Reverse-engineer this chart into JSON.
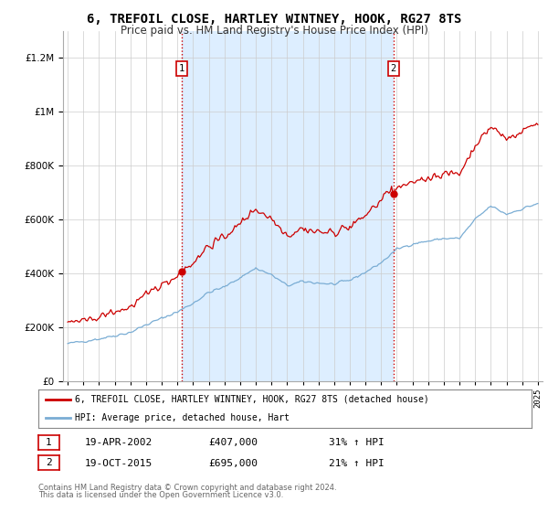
{
  "title": "6, TREFOIL CLOSE, HARTLEY WINTNEY, HOOK, RG27 8TS",
  "subtitle": "Price paid vs. HM Land Registry's House Price Index (HPI)",
  "title_fontsize": 10,
  "subtitle_fontsize": 8.5,
  "legend_line1": "6, TREFOIL CLOSE, HARTLEY WINTNEY, HOOK, RG27 8TS (detached house)",
  "legend_line2": "HPI: Average price, detached house, Hart",
  "sale1_date": "19-APR-2002",
  "sale1_price": "£407,000",
  "sale1_hpi": "31% ↑ HPI",
  "sale1_year": 2002.29,
  "sale1_value": 407000,
  "sale2_date": "19-OCT-2015",
  "sale2_price": "£695,000",
  "sale2_hpi": "21% ↑ HPI",
  "sale2_year": 2015.79,
  "sale2_value": 695000,
  "line_color_red": "#cc0000",
  "line_color_blue": "#7aadd4",
  "fill_color": "#ddeeff",
  "vline_color": "#cc0000",
  "background_color": "#ffffff",
  "grid_color": "#cccccc",
  "ylim": [
    0,
    1300000
  ],
  "yticks": [
    0,
    200000,
    400000,
    600000,
    800000,
    1000000,
    1200000
  ],
  "footer1": "Contains HM Land Registry data © Crown copyright and database right 2024.",
  "footer2": "This data is licensed under the Open Government Licence v3.0."
}
